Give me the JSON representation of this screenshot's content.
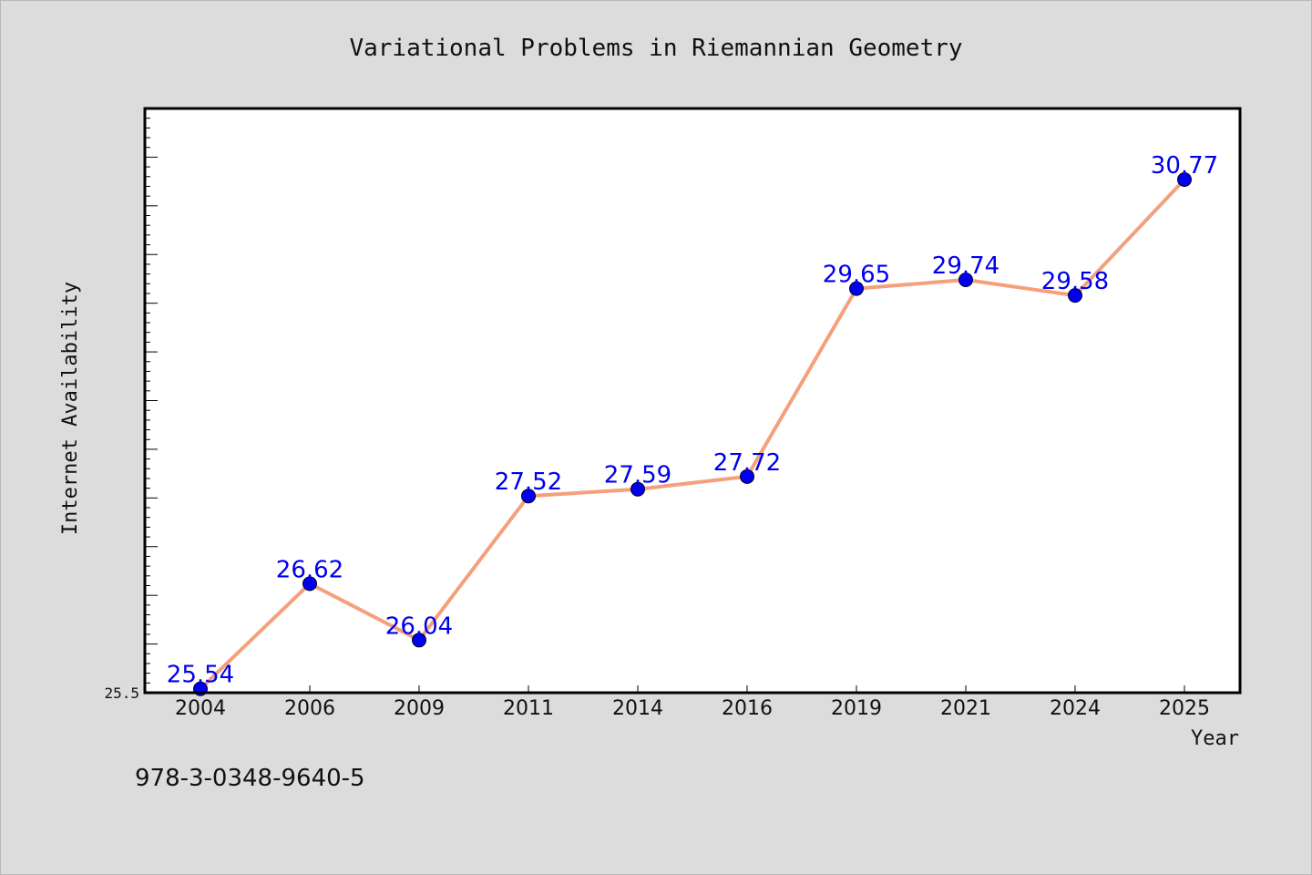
{
  "chart_data": {
    "type": "line",
    "title": "Variational Problems in Riemannian Geometry",
    "xlabel": "Year",
    "ylabel": "Internet Availability",
    "categories": [
      "2004",
      "2006",
      "2009",
      "2011",
      "2014",
      "2016",
      "2019",
      "2021",
      "2024",
      "2025"
    ],
    "series": [
      {
        "values": [
          25.54,
          26.62,
          26.04,
          27.52,
          27.59,
          27.72,
          29.65,
          29.74,
          29.58,
          30.77
        ]
      }
    ],
    "data_labels": [
      "25.54",
      "26.62",
      "26.04",
      "27.52",
      "27.59",
      "27.72",
      "29.65",
      "29.74",
      "29.58",
      "30.77"
    ],
    "ylim": [
      25.5,
      31.5
    ],
    "yticks_labeled": [
      "25.5"
    ],
    "grid": false,
    "legend": "none",
    "colors": {
      "line": "#f4a07c",
      "marker": "#0000ee",
      "label": "#0000ee",
      "background": "#dcdcdc",
      "plot_background": "#ffffff"
    }
  },
  "footnote": "978-3-0348-9640-5"
}
